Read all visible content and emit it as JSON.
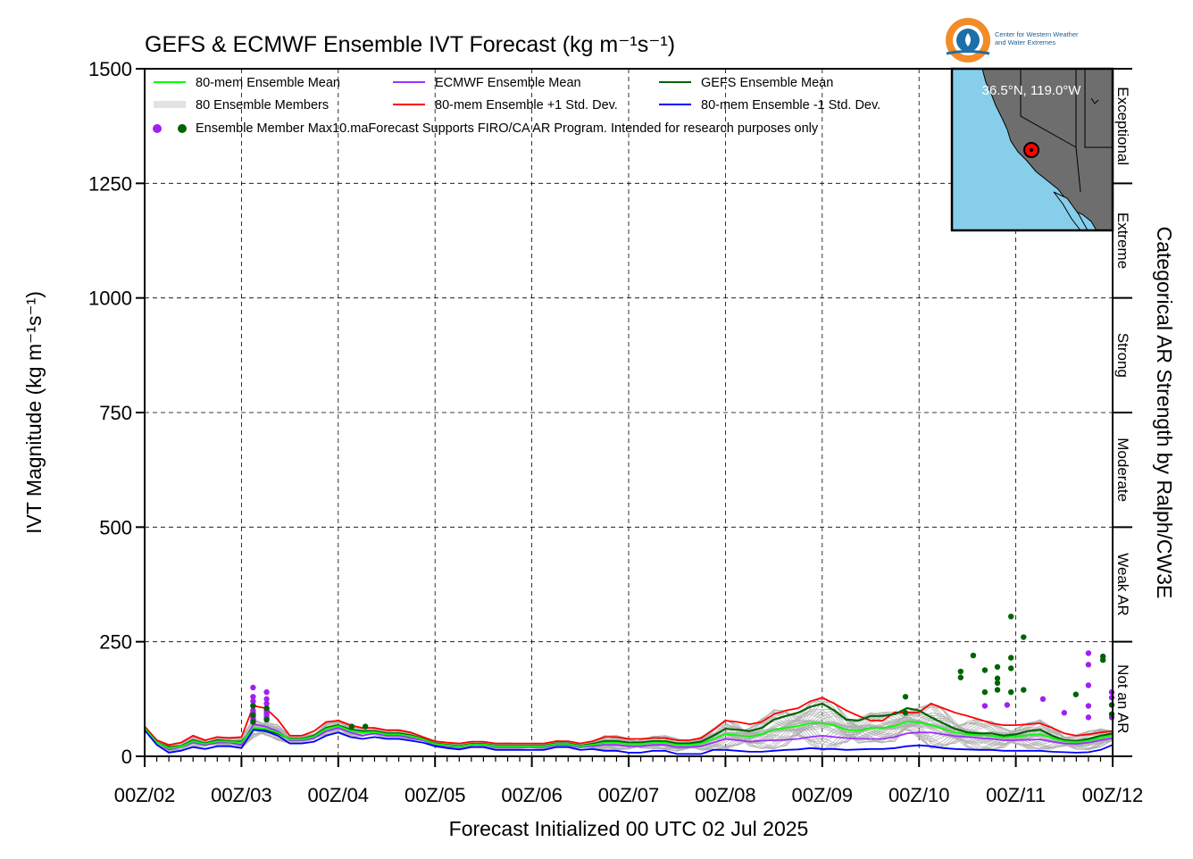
{
  "logo": {
    "line1": "Center for Western Weather",
    "line2": "and Water Extremes",
    "colors": {
      "ring": "#f28c28",
      "inner": "#1e6fa8",
      "waves": "#1e6fa8"
    }
  },
  "inset_map": {
    "coord_label": "36.5°N, 119.0°W",
    "ocean_color": "#87ceeb",
    "land_color": "#6e6e6e",
    "marker_color": "#ff0000"
  },
  "chart_data": {
    "type": "line",
    "title": "GEFS & ECMWF Ensemble IVT Forecast (kg m⁻¹s⁻¹)",
    "xlabel": "Forecast Initialized 00 UTC 02 Jul 2025",
    "ylabel": "IVT Magnitude (kg m⁻¹s⁻¹)",
    "y2label": "Categorical AR Strength by Ralph/CW3E",
    "ylim": [
      0,
      1500
    ],
    "yticks": [
      0,
      250,
      500,
      750,
      1000,
      1250,
      1500
    ],
    "xlim": [
      0,
      10
    ],
    "xticks": [
      0,
      1,
      2,
      3,
      4,
      5,
      6,
      7,
      8,
      9,
      10
    ],
    "xtick_labels": [
      "00Z/02",
      "00Z/03",
      "00Z/04",
      "00Z/05",
      "00Z/06",
      "00Z/07",
      "00Z/08",
      "00Z/09",
      "00Z/10",
      "00Z/11",
      "00Z/12"
    ],
    "grid": true,
    "legend_position": "top-left",
    "ar_categories": [
      {
        "label": "Not an AR",
        "range": [
          0,
          250
        ]
      },
      {
        "label": "Weak AR",
        "range": [
          250,
          500
        ]
      },
      {
        "label": "Moderate",
        "range": [
          500,
          750
        ]
      },
      {
        "label": "Strong",
        "range": [
          750,
          1000
        ]
      },
      {
        "label": "Extreme",
        "range": [
          1000,
          1250
        ]
      },
      {
        "label": "Exceptional",
        "range": [
          1250,
          1500
        ]
      }
    ],
    "legend": [
      {
        "label": "80-mem Ensemble Mean",
        "color": "#00ff00",
        "kind": "line"
      },
      {
        "label": "ECMWF Ensemble Mean",
        "color": "#9b30ff",
        "kind": "line"
      },
      {
        "label": "GEFS Ensemble Mean",
        "color": "#006400",
        "kind": "line"
      },
      {
        "label": "80 Ensemble Members",
        "color": "#b0b0b0",
        "kind": "members"
      },
      {
        "label": "80-mem Ensemble +1 Std. Dev.",
        "color": "#ff0000",
        "kind": "line"
      },
      {
        "label": "80-mem Ensemble -1 Std. Dev.",
        "color": "#0000ff",
        "kind": "line"
      },
      {
        "label": "Ensemble Member Max10.maForecast Supports FIRO/CA AR Program. Intended for research purposes only",
        "colors": [
          "#a020f0",
          "#006400"
        ],
        "kind": "dots"
      }
    ],
    "x": [
      0,
      0.125,
      0.25,
      0.375,
      0.5,
      0.625,
      0.75,
      0.875,
      1,
      1.125,
      1.25,
      1.375,
      1.5,
      1.625,
      1.75,
      1.875,
      2,
      2.125,
      2.25,
      2.375,
      2.5,
      2.625,
      2.75,
      2.875,
      3,
      3.125,
      3.25,
      3.375,
      3.5,
      3.625,
      3.75,
      3.875,
      4,
      4.125,
      4.25,
      4.375,
      4.5,
      4.625,
      4.75,
      4.875,
      5,
      5.125,
      5.25,
      5.375,
      5.5,
      5.625,
      5.75,
      5.875,
      6,
      6.125,
      6.25,
      6.375,
      6.5,
      6.625,
      6.75,
      6.875,
      7,
      7.125,
      7.25,
      7.375,
      7.5,
      7.625,
      7.75,
      7.875,
      8,
      8.125,
      8.25,
      8.375,
      8.5,
      8.625,
      8.75,
      8.875,
      9,
      9.125,
      9.25,
      9.375,
      9.5,
      9.625,
      9.75,
      9.875,
      10
    ],
    "series": [
      {
        "name": "80-mem Ensemble +1 Std. Dev.",
        "color": "#ff0000",
        "values": [
          65,
          35,
          25,
          30,
          45,
          35,
          42,
          40,
          42,
          110,
          105,
          80,
          45,
          45,
          55,
          75,
          78,
          68,
          62,
          62,
          57,
          57,
          52,
          42,
          33,
          30,
          28,
          32,
          32,
          28,
          28,
          28,
          28,
          28,
          33,
          33,
          28,
          33,
          42,
          42,
          38,
          38,
          40,
          40,
          35,
          35,
          40,
          58,
          78,
          75,
          70,
          75,
          92,
          100,
          105,
          120,
          128,
          115,
          100,
          88,
          78,
          78,
          96,
          95,
          96,
          115,
          105,
          95,
          88,
          80,
          72,
          68,
          68,
          70,
          72,
          62,
          50,
          45,
          48,
          52,
          55
        ]
      },
      {
        "name": "ECMWF Ensemble Mean",
        "color": "#9b30ff",
        "values": [
          60,
          30,
          15,
          20,
          30,
          25,
          30,
          30,
          25,
          70,
          65,
          55,
          35,
          35,
          40,
          55,
          62,
          52,
          45,
          50,
          45,
          45,
          40,
          35,
          25,
          22,
          20,
          25,
          25,
          20,
          20,
          20,
          20,
          20,
          25,
          25,
          20,
          22,
          25,
          25,
          22,
          22,
          25,
          25,
          20,
          20,
          22,
          30,
          38,
          35,
          32,
          34,
          35,
          36,
          38,
          42,
          45,
          42,
          40,
          38,
          38,
          38,
          42,
          50,
          52,
          52,
          48,
          44,
          42,
          40,
          38,
          35,
          35,
          36,
          37,
          32,
          28,
          27,
          30,
          35,
          40
        ]
      },
      {
        "name": "GEFS Ensemble Mean",
        "color": "#006400",
        "values": [
          62,
          30,
          20,
          22,
          35,
          28,
          35,
          33,
          32,
          60,
          58,
          50,
          38,
          38,
          45,
          62,
          68,
          58,
          55,
          55,
          50,
          50,
          46,
          38,
          28,
          25,
          22,
          27,
          27,
          23,
          23,
          23,
          23,
          23,
          28,
          28,
          23,
          27,
          33,
          33,
          30,
          30,
          33,
          33,
          28,
          28,
          32,
          45,
          60,
          58,
          55,
          62,
          80,
          88,
          95,
          108,
          115,
          100,
          80,
          78,
          88,
          88,
          92,
          105,
          100,
          85,
          72,
          60,
          52,
          50,
          50,
          45,
          48,
          55,
          58,
          45,
          35,
          33,
          38,
          45,
          50
        ]
      },
      {
        "name": "80-mem Ensemble Mean",
        "color": "#00ff00",
        "values": [
          61,
          30,
          18,
          21,
          33,
          27,
          33,
          32,
          30,
          62,
          60,
          52,
          37,
          37,
          43,
          60,
          66,
          56,
          52,
          53,
          48,
          48,
          44,
          37,
          27,
          24,
          21,
          26,
          26,
          22,
          22,
          22,
          22,
          22,
          27,
          27,
          22,
          25,
          30,
          30,
          27,
          27,
          30,
          30,
          25,
          25,
          28,
          38,
          48,
          46,
          43,
          48,
          58,
          62,
          66,
          72,
          72,
          68,
          58,
          56,
          62,
          62,
          66,
          76,
          74,
          68,
          60,
          52,
          48,
          46,
          45,
          41,
          43,
          46,
          48,
          40,
          33,
          31,
          34,
          40,
          46
        ]
      },
      {
        "name": "80-mem Ensemble -1 Std. Dev.",
        "color": "#0000ff",
        "values": [
          57,
          25,
          8,
          12,
          20,
          16,
          22,
          22,
          18,
          58,
          55,
          45,
          28,
          28,
          32,
          45,
          52,
          42,
          38,
          42,
          38,
          38,
          34,
          30,
          22,
          18,
          15,
          20,
          20,
          14,
          14,
          14,
          14,
          14,
          20,
          20,
          14,
          16,
          12,
          12,
          8,
          8,
          12,
          12,
          5,
          5,
          5,
          14,
          14,
          12,
          10,
          10,
          12,
          14,
          15,
          18,
          16,
          16,
          14,
          15,
          16,
          16,
          18,
          22,
          24,
          22,
          18,
          16,
          15,
          14,
          14,
          12,
          12,
          12,
          12,
          10,
          9,
          8,
          9,
          14,
          25
        ]
      }
    ],
    "member_maxima": [
      {
        "model": "ECMWF",
        "color": "#a020f0",
        "points": [
          [
            1.12,
            150
          ],
          [
            1.12,
            130
          ],
          [
            1.12,
            120
          ],
          [
            1.12,
            110
          ],
          [
            1.12,
            100
          ],
          [
            1.12,
            95
          ],
          [
            1.12,
            90
          ],
          [
            1.12,
            85
          ],
          [
            1.12,
            80
          ],
          [
            1.12,
            75
          ],
          [
            1.26,
            140
          ],
          [
            1.26,
            125
          ],
          [
            1.26,
            115
          ],
          [
            1.26,
            105
          ],
          [
            1.26,
            100
          ],
          [
            1.26,
            95
          ],
          [
            1.26,
            90
          ],
          [
            1.26,
            85
          ],
          [
            1.26,
            80
          ],
          [
            8.68,
            110
          ],
          [
            8.91,
            112
          ],
          [
            9.28,
            125
          ],
          [
            9.5,
            95
          ],
          [
            9.75,
            225
          ],
          [
            9.75,
            200
          ],
          [
            9.75,
            155
          ],
          [
            9.75,
            110
          ],
          [
            9.75,
            85
          ],
          [
            10.55,
            140
          ],
          [
            10.55,
            85
          ],
          [
            12.0,
            128
          ]
        ]
      },
      {
        "model": "GEFS",
        "color": "#006400",
        "points": [
          [
            1.12,
            110
          ],
          [
            1.12,
            90
          ],
          [
            1.12,
            75
          ],
          [
            1.26,
            105
          ],
          [
            1.26,
            80
          ],
          [
            2.14,
            65
          ],
          [
            2.28,
            65
          ],
          [
            7.86,
            130
          ],
          [
            7.86,
            95
          ],
          [
            8.43,
            185
          ],
          [
            8.43,
            172
          ],
          [
            8.56,
            220
          ],
          [
            8.68,
            188
          ],
          [
            8.68,
            140
          ],
          [
            8.81,
            195
          ],
          [
            8.81,
            170
          ],
          [
            8.81,
            160
          ],
          [
            8.81,
            145
          ],
          [
            8.95,
            305
          ],
          [
            8.95,
            215
          ],
          [
            8.95,
            192
          ],
          [
            8.95,
            140
          ],
          [
            9.08,
            260
          ],
          [
            9.08,
            145
          ],
          [
            9.62,
            135
          ],
          [
            9.9,
            218
          ],
          [
            9.9,
            210
          ],
          [
            10.9,
            112
          ],
          [
            11.02,
            92
          ]
        ]
      }
    ]
  }
}
